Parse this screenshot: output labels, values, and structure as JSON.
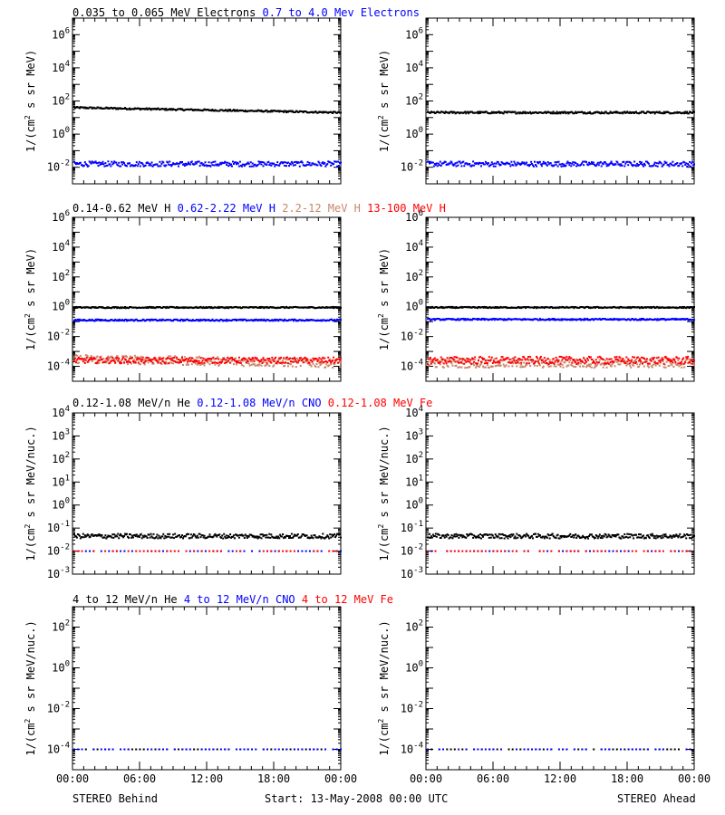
{
  "footer": {
    "left": "STEREO Behind",
    "center": "Start: 13-May-2008 00:00 UTC",
    "right": "STEREO Ahead"
  },
  "time_ticks": [
    "00:00",
    "06:00",
    "12:00",
    "18:00",
    "00:00"
  ],
  "colors": {
    "black": "#000000",
    "blue": "#0000ff",
    "tan": "#c8866b",
    "red": "#ff0000"
  },
  "chart_data": [
    {
      "type": "scatter",
      "row_title": [
        {
          "text": "0.035 to 0.065 MeV Electrons",
          "color": "#000000"
        },
        {
          "text": "0.7 to 4.0 Mev Electrons",
          "color": "#0000ff"
        }
      ],
      "ylabel": "1/(cm2 s sr MeV)",
      "y_scale": "log",
      "ylim_log10": [
        -3,
        7
      ],
      "y_ticks": [
        "10^6",
        "10^4",
        "10^2",
        "10^0",
        "10^-2"
      ],
      "x_range_hours": [
        0,
        24
      ],
      "panels": [
        {
          "spacecraft": "STEREO Behind",
          "series": [
            {
              "name": "0.035 to 0.065 MeV Electrons",
              "color": "#000000",
              "log10_start": 1.6,
              "log10_end": 1.3,
              "scatter": 0.05
            },
            {
              "name": "0.7 to 4.0 Mev Electrons",
              "color": "#0000ff",
              "log10_start": -1.8,
              "log10_end": -1.8,
              "scatter": 0.15
            }
          ]
        },
        {
          "spacecraft": "STEREO Ahead",
          "series": [
            {
              "name": "0.035 to 0.065 MeV Electrons",
              "color": "#000000",
              "log10_start": 1.3,
              "log10_end": 1.3,
              "scatter": 0.06
            },
            {
              "name": "0.7 to 4.0 Mev Electrons",
              "color": "#0000ff",
              "log10_start": -1.8,
              "log10_end": -1.8,
              "scatter": 0.15
            }
          ]
        }
      ]
    },
    {
      "type": "scatter",
      "row_title": [
        {
          "text": "0.14-0.62 MeV H",
          "color": "#000000"
        },
        {
          "text": "0.62-2.22 MeV H",
          "color": "#0000ff"
        },
        {
          "text": "2.2-12 MeV H",
          "color": "#c8866b"
        },
        {
          "text": "13-100 MeV H",
          "color": "#ff0000"
        }
      ],
      "ylabel": "1/(cm2 s sr MeV)",
      "y_scale": "log",
      "ylim_log10": [
        -5,
        6
      ],
      "y_ticks": [
        "10^6",
        "10^4",
        "10^2",
        "10^0",
        "10^-2",
        "10^-4"
      ],
      "x_range_hours": [
        0,
        24
      ],
      "panels": [
        {
          "spacecraft": "STEREO Behind",
          "series": [
            {
              "name": "0.14-0.62 MeV H",
              "color": "#000000",
              "log10_start": -0.05,
              "log10_end": -0.05,
              "scatter": 0.04
            },
            {
              "name": "0.62-2.22 MeV H",
              "color": "#0000ff",
              "log10_start": -0.9,
              "log10_end": -0.9,
              "scatter": 0.05
            },
            {
              "name": "2.2-12 MeV H",
              "color": "#c8866b",
              "log10_start": -3.5,
              "log10_end": -3.8,
              "scatter": 0.3
            },
            {
              "name": "13-100 MeV H",
              "color": "#ff0000",
              "log10_start": -3.6,
              "log10_end": -3.6,
              "scatter": 0.2
            }
          ]
        },
        {
          "spacecraft": "STEREO Ahead",
          "series": [
            {
              "name": "0.14-0.62 MeV H",
              "color": "#000000",
              "log10_start": -0.05,
              "log10_end": -0.05,
              "scatter": 0.04
            },
            {
              "name": "0.62-2.22 MeV H",
              "color": "#0000ff",
              "log10_start": -0.85,
              "log10_end": -0.85,
              "scatter": 0.05
            },
            {
              "name": "2.2-12 MeV H",
              "color": "#c8866b",
              "log10_start": -3.8,
              "log10_end": -3.8,
              "scatter": 0.3
            },
            {
              "name": "13-100 MeV H",
              "color": "#ff0000",
              "log10_start": -3.6,
              "log10_end": -3.6,
              "scatter": 0.25
            }
          ]
        }
      ]
    },
    {
      "type": "scatter",
      "row_title": [
        {
          "text": "0.12-1.08 MeV/n He",
          "color": "#000000"
        },
        {
          "text": "0.12-1.08 MeV/n CNO",
          "color": "#0000ff"
        },
        {
          "text": "0.12-1.08 MeV Fe",
          "color": "#ff0000"
        }
      ],
      "ylabel": "1/(cm2 s sr MeV/nuc.)",
      "y_scale": "log",
      "ylim_log10": [
        -3,
        4
      ],
      "y_ticks": [
        "10^4",
        "10^3",
        "10^2",
        "10^1",
        "10^0",
        "10^-1",
        "10^-2",
        "10^-3"
      ],
      "x_range_hours": [
        0,
        24
      ],
      "panels": [
        {
          "spacecraft": "STEREO Behind",
          "series": [
            {
              "name": "0.12-1.08 MeV/n He",
              "color": "#000000",
              "log10_start": -1.35,
              "log10_end": -1.35,
              "scatter": 0.1
            },
            {
              "name": "0.12-1.08 MeV/n CNO",
              "color": "#0000ff",
              "log10_start": -2.0,
              "log10_end": -2.0,
              "scatter": 0.0
            },
            {
              "name": "0.12-1.08 MeV Fe",
              "color": "#ff0000",
              "log10_start": -2.0,
              "log10_end": -2.0,
              "scatter": 0.0
            }
          ]
        },
        {
          "spacecraft": "STEREO Ahead",
          "series": [
            {
              "name": "0.12-1.08 MeV/n He",
              "color": "#000000",
              "log10_start": -1.35,
              "log10_end": -1.35,
              "scatter": 0.1
            },
            {
              "name": "0.12-1.08 MeV/n CNO",
              "color": "#0000ff",
              "log10_start": -2.0,
              "log10_end": -2.0,
              "scatter": 0.0
            },
            {
              "name": "0.12-1.08 MeV Fe",
              "color": "#ff0000",
              "log10_start": -2.0,
              "log10_end": -2.0,
              "scatter": 0.0
            }
          ]
        }
      ]
    },
    {
      "type": "scatter",
      "row_title": [
        {
          "text": "4 to 12 MeV/n He",
          "color": "#000000"
        },
        {
          "text": "4 to 12 MeV/n CNO",
          "color": "#0000ff"
        },
        {
          "text": "4 to 12 MeV Fe",
          "color": "#ff0000"
        }
      ],
      "ylabel": "1/(cm2 s sr MeV/nuc.)",
      "y_scale": "log",
      "ylim_log10": [
        -5,
        3
      ],
      "y_ticks": [
        "10^2",
        "10^0",
        "10^-2",
        "10^-4"
      ],
      "x_range_hours": [
        0,
        24
      ],
      "panels": [
        {
          "spacecraft": "STEREO Behind",
          "series": [
            {
              "name": "4 to 12 MeV/n He",
              "color": "#000000",
              "log10_start": -4.0,
              "log10_end": -4.0,
              "scatter": 0.0
            },
            {
              "name": "4 to 12 MeV/n CNO",
              "color": "#0000ff",
              "log10_start": -4.0,
              "log10_end": -4.0,
              "scatter": 0.0
            }
          ]
        },
        {
          "spacecraft": "STEREO Ahead",
          "series": [
            {
              "name": "4 to 12 MeV/n He",
              "color": "#000000",
              "log10_start": -4.0,
              "log10_end": -4.0,
              "scatter": 0.0
            },
            {
              "name": "4 to 12 MeV/n CNO",
              "color": "#0000ff",
              "log10_start": -4.0,
              "log10_end": -4.0,
              "scatter": 0.0
            }
          ]
        }
      ]
    }
  ]
}
